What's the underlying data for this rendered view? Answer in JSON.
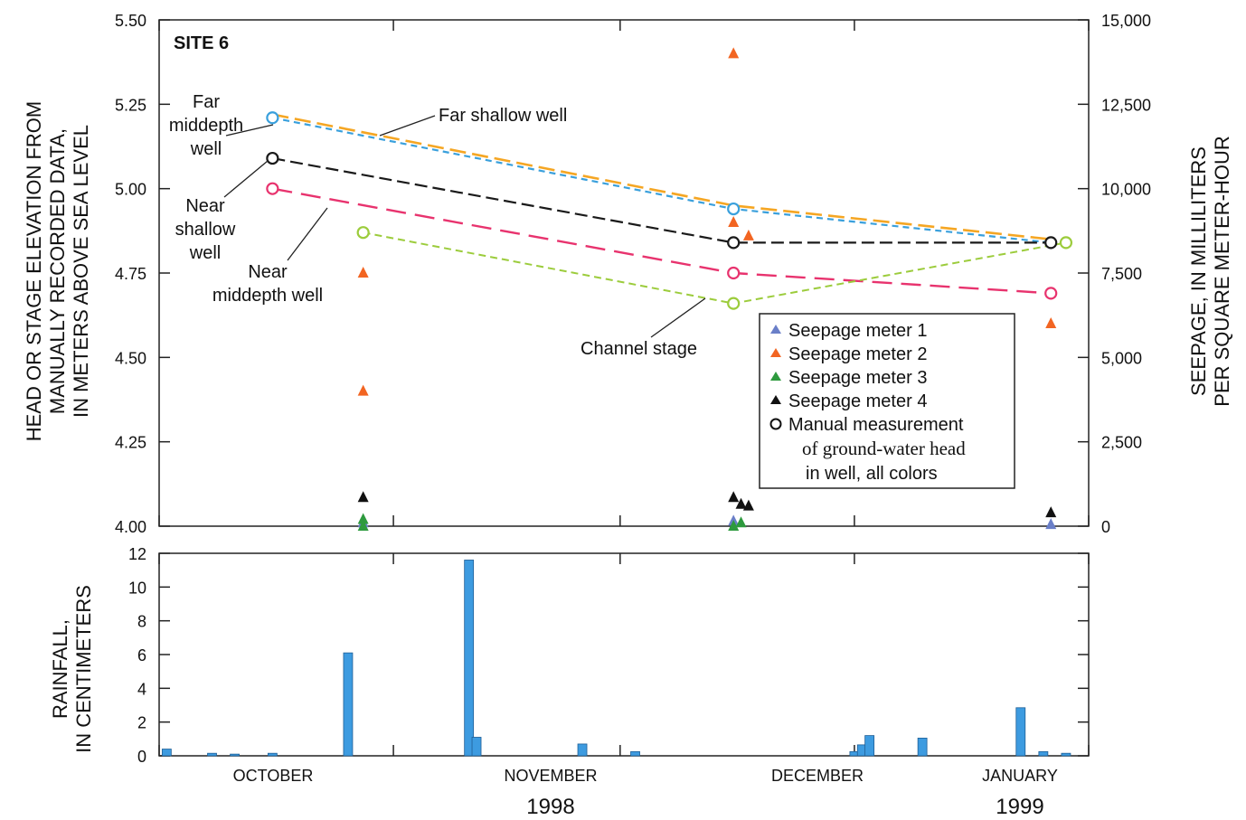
{
  "figure": {
    "site_label": "SITE 6",
    "left_axis_title": [
      "HEAD OR STAGE ELEVATION FROM",
      "MANUALLY RECORDED DATA,",
      "IN METERS ABOVE SEA LEVEL"
    ],
    "right_axis_title": [
      "SEEPAGE, IN MILLILITERS",
      "PER SQUARE METER-HOUR"
    ],
    "rain_axis_title": [
      "RAINFALL,",
      "IN CENTIMETERS"
    ],
    "months": [
      "OCTOBER",
      "NOVEMBER",
      "DECEMBER",
      "JANUARY"
    ],
    "years": [
      "1998",
      "1999"
    ],
    "annotations": {
      "far_middepth": [
        "Far",
        "middepth",
        "well"
      ],
      "far_shallow": "Far shallow well",
      "near_shallow": [
        "Near",
        "shallow",
        "well"
      ],
      "near_middepth": [
        "Near",
        "middepth well"
      ],
      "channel_stage": "Channel stage"
    },
    "legend": {
      "seepage1": "Seepage meter 1",
      "seepage2": "Seepage meter 2",
      "seepage3": "Seepage meter 3",
      "seepage4": "Seepage meter 4",
      "manual": "Manual measurement",
      "manual2": "of ground-water head",
      "manual3": "in well, all colors"
    },
    "colors": {
      "far_shallow": "#f5a623",
      "far_middepth": "#3aa0dc",
      "near_shallow": "#1a1a1a",
      "near_middepth": "#e8336e",
      "channel": "#9ccc3c",
      "seep1": "#6a7fc8",
      "seep2": "#f26522",
      "seep3": "#2e9a3e",
      "seep4": "#111111",
      "rain": "#3d9be0"
    }
  },
  "chart_data": [
    {
      "type": "line",
      "xlabel": "",
      "ylabel": "HEAD OR STAGE ELEVATION FROM MANUALLY RECORDED DATA, IN METERS ABOVE SEA LEVEL",
      "y2label": "SEEPAGE, IN MILLILITERS PER SQUARE METER-HOUR",
      "xlim_days": [
        0,
        123
      ],
      "x_unit": "days since 1998-10-01",
      "ylim": [
        4.0,
        5.5
      ],
      "yticks": [
        4.0,
        4.25,
        4.5,
        4.75,
        5.0,
        5.25,
        5.5
      ],
      "ytick_labels": [
        "4.00",
        "4.25",
        "4.50",
        "4.75",
        "5.00",
        "5.25",
        "5.50"
      ],
      "y2lim": [
        0,
        15000
      ],
      "y2ticks": [
        0,
        2500,
        5000,
        7500,
        10000,
        12500,
        15000
      ],
      "y2tick_labels": [
        "0",
        "2,500",
        "5,000",
        "7,500",
        "10,000",
        "12,500",
        "15,000"
      ],
      "series": [
        {
          "name": "Far shallow well",
          "key": "far_shallow",
          "x": [
            15,
            76,
            118
          ],
          "y": [
            5.22,
            4.95,
            4.85
          ],
          "markers": [
            false,
            false,
            false
          ]
        },
        {
          "name": "Far middepth well",
          "key": "far_middepth",
          "x": [
            15,
            76,
            118
          ],
          "y": [
            5.21,
            4.94,
            4.84
          ],
          "markers": [
            true,
            true,
            false
          ]
        },
        {
          "name": "Near shallow well",
          "key": "near_shallow",
          "x": [
            15,
            76,
            118
          ],
          "y": [
            5.09,
            4.84,
            4.84
          ],
          "markers": [
            true,
            true,
            true
          ]
        },
        {
          "name": "Near middepth well",
          "key": "near_middepth",
          "x": [
            15,
            76,
            118
          ],
          "y": [
            5.0,
            4.75,
            4.69
          ],
          "markers": [
            true,
            true,
            true
          ]
        },
        {
          "name": "Channel stage",
          "key": "channel",
          "x": [
            27,
            76,
            120
          ],
          "y": [
            4.87,
            4.66,
            4.84
          ],
          "markers": [
            true,
            true,
            true
          ]
        }
      ],
      "seepage": [
        {
          "name": "Seepage meter 1",
          "key": "seep1",
          "x": [
            27,
            76,
            118
          ],
          "y": [
            100,
            150,
            50
          ]
        },
        {
          "name": "Seepage meter 2",
          "key": "seep2",
          "x": [
            27,
            27,
            76,
            76,
            78,
            118
          ],
          "y": [
            7500,
            4000,
            14000,
            9000,
            8600,
            6000
          ]
        },
        {
          "name": "Seepage meter 3",
          "key": "seep3",
          "x": [
            27,
            27,
            76,
            77
          ],
          "y": [
            0,
            200,
            0,
            100
          ]
        },
        {
          "name": "Seepage meter 4",
          "key": "seep4",
          "x": [
            27,
            76,
            77,
            78,
            118
          ],
          "y": [
            850,
            850,
            650,
            600,
            400
          ]
        }
      ]
    },
    {
      "type": "bar",
      "ylabel": "RAINFALL, IN CENTIMETERS",
      "x_unit": "days since 1998-10-01",
      "ylim": [
        0,
        12
      ],
      "yticks": [
        0,
        2,
        4,
        6,
        8,
        10,
        12
      ],
      "x": [
        1,
        7,
        10,
        15,
        25,
        41,
        42,
        56,
        63,
        92,
        93,
        94,
        101,
        114,
        117,
        120
      ],
      "values": [
        0.4,
        0.15,
        0.1,
        0.15,
        6.1,
        11.6,
        1.1,
        0.7,
        0.25,
        0.25,
        0.65,
        1.2,
        1.05,
        2.85,
        0.25,
        0.15
      ]
    }
  ]
}
